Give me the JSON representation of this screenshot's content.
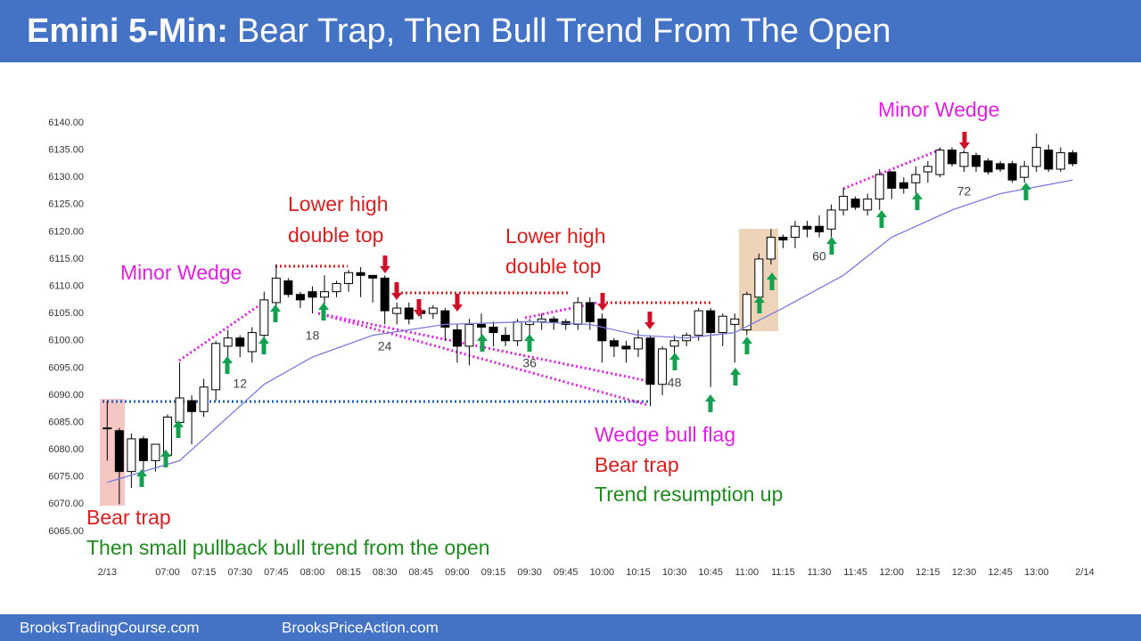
{
  "header": {
    "title_bold": "Emini 5-Min:",
    "title_rest": "Bear Trap, Then Bull Trend From The Open"
  },
  "footer": {
    "left": "BrooksTradingCourse.com",
    "right": "BrooksPriceAction.com"
  },
  "chart_data": {
    "type": "candlestick",
    "x": [
      1,
      2,
      3,
      4,
      5,
      6,
      7,
      8,
      9,
      10,
      11,
      12,
      13,
      14,
      15,
      16,
      17,
      18,
      19,
      20,
      21,
      22,
      23,
      24,
      25,
      26,
      27,
      28,
      29,
      30,
      31,
      32,
      33,
      34,
      35,
      36,
      37,
      38,
      39,
      40,
      41,
      42,
      43,
      44,
      45,
      46,
      47,
      48,
      49,
      50,
      51,
      52,
      53,
      54,
      55,
      56,
      57,
      58,
      59,
      60,
      61,
      62,
      63,
      64,
      65,
      66,
      67,
      68,
      69,
      70,
      71,
      72,
      73,
      74,
      75,
      76,
      77,
      78,
      79,
      80,
      81
    ],
    "open": [
      6084,
      6083.5,
      6076,
      6082,
      6078,
      6079,
      6085,
      6089,
      6087,
      6091,
      6099,
      6100.5,
      6098,
      6101,
      6107,
      6111,
      6108.5,
      6109,
      6108,
      6109,
      6110.5,
      6112.5,
      6112,
      6111.5,
      6105,
      6106,
      6105.5,
      6105,
      6105.5,
      6102,
      6099,
      6103,
      6102.5,
      6101,
      6100,
      6103,
      6103.5,
      6104,
      6103.5,
      6103,
      6107,
      6104,
      6100,
      6099,
      6098.5,
      6100.5,
      6092,
      6099,
      6100,
      6101,
      6105.5,
      6101.5,
      6103,
      6102,
      6108,
      6115,
      6119,
      6119,
      6121,
      6121,
      6120.5,
      6124,
      6126,
      6124,
      6126,
      6131,
      6129,
      6129,
      6131,
      6130.5,
      6135,
      6132,
      6134,
      6133,
      6132.5,
      6132.5,
      6130,
      6132,
      6135,
      6131.5,
      6134.5
    ],
    "high": [
      6089,
      6084,
      6083,
      6082.5,
      6081,
      6086.5,
      6096,
      6090,
      6093,
      6100,
      6102,
      6101,
      6102.5,
      6109,
      6114,
      6111.5,
      6109,
      6110,
      6112,
      6111,
      6113,
      6113.5,
      6112,
      6112,
      6107,
      6107,
      6106,
      6106.5,
      6106,
      6103,
      6104,
      6105,
      6103.5,
      6102.5,
      6104,
      6104,
      6105,
      6104.5,
      6104,
      6108,
      6108,
      6105,
      6100.5,
      6100,
      6102,
      6101,
      6099,
      6101,
      6101.5,
      6106,
      6106,
      6105,
      6105,
      6109,
      6116,
      6120.5,
      6119.5,
      6122,
      6122,
      6123,
      6125,
      6128,
      6126.5,
      6127,
      6131.5,
      6131,
      6130,
      6132,
      6133,
      6135.5,
      6135.5,
      6135,
      6134.5,
      6133.5,
      6133,
      6133,
      6133,
      6138,
      6136,
      6135.5,
      6135
    ],
    "low": [
      6078,
      6070,
      6073,
      6074,
      6076,
      6077,
      6083,
      6081,
      6086,
      6089,
      6097,
      6097,
      6096,
      6099,
      6105,
      6108,
      6106,
      6105,
      6105,
      6108,
      6109,
      6108,
      6107,
      6103,
      6103,
      6103,
      6104,
      6104,
      6100,
      6096,
      6095.5,
      6100,
      6099,
      6099,
      6099,
      6101,
      6102,
      6102,
      6102,
      6102,
      6102,
      6096,
      6097,
      6096,
      6097,
      6088,
      6090,
      6097,
      6099,
      6100,
      6091.5,
      6099,
      6096,
      6101,
      6107,
      6114,
      6117,
      6117,
      6119,
      6119,
      6119,
      6123,
      6124,
      6123,
      6124,
      6126,
      6127,
      6127,
      6129,
      6130,
      6132,
      6131,
      6131,
      6130.5,
      6131,
      6129,
      6129,
      6131,
      6131,
      6131,
      6132
    ],
    "close": [
      6084,
      6076,
      6082,
      6078,
      6081,
      6086,
      6089.5,
      6087,
      6091.5,
      6099.5,
      6100.5,
      6099,
      6101.5,
      6107.5,
      6111.5,
      6108.5,
      6107.5,
      6108,
      6109,
      6110.5,
      6112.5,
      6112,
      6111.5,
      6105.5,
      6106,
      6104,
      6105,
      6106,
      6102.5,
      6099,
      6103,
      6102.5,
      6101.5,
      6100,
      6103.5,
      6103.5,
      6104,
      6103.5,
      6103,
      6107,
      6103.5,
      6100,
      6099,
      6098.5,
      6100.5,
      6092,
      6098.5,
      6100,
      6101,
      6105.5,
      6101.5,
      6104.5,
      6104,
      6108.5,
      6115,
      6119,
      6118.5,
      6121,
      6120.5,
      6120,
      6124,
      6126.5,
      6124.5,
      6126,
      6130.5,
      6128,
      6128,
      6130.5,
      6132,
      6135,
      6132.5,
      6134.5,
      6132,
      6131,
      6131.5,
      6129.5,
      6132,
      6135.5,
      6131.5,
      6134.5,
      6132.5
    ],
    "up_color": "#ffffff",
    "down_color": "#000000",
    "ema": {
      "x": [
        1,
        7,
        11,
        14,
        18,
        23,
        29,
        36,
        41,
        45,
        49,
        53,
        57,
        62,
        66,
        71,
        75,
        81
      ],
      "values": [
        6074,
        6078,
        6086,
        6092,
        6097,
        6101,
        6103,
        6103.5,
        6103,
        6101,
        6100.5,
        6101.5,
        6106,
        6112,
        6119,
        6124,
        6127,
        6129.5
      ],
      "color": "#7b7bdb"
    },
    "xlim": [
      -0.5,
      82.6
    ],
    "ylim": [
      6064.5,
      6141.3
    ],
    "yticks": [
      {
        "value": 6140,
        "label": "6140.00"
      },
      {
        "value": 6135,
        "label": "6135.00"
      },
      {
        "value": 6130,
        "label": "6130.00"
      },
      {
        "value": 6125,
        "label": "6125.00"
      },
      {
        "value": 6120,
        "label": "6120.00"
      },
      {
        "value": 6115,
        "label": "6115.00"
      },
      {
        "value": 6110,
        "label": "6110.00"
      },
      {
        "value": 6105,
        "label": "6105.00"
      },
      {
        "value": 6100,
        "label": "6100.00"
      },
      {
        "value": 6095,
        "label": "6095.00"
      },
      {
        "value": 6090,
        "label": "6090.00"
      },
      {
        "value": 6085,
        "label": "6085.00"
      },
      {
        "value": 6080,
        "label": "6080.00"
      },
      {
        "value": 6075,
        "label": "6075.00"
      },
      {
        "value": 6070,
        "label": "6070.00"
      },
      {
        "value": 6065,
        "label": "6065.00"
      }
    ],
    "xticks": [
      {
        "value": 1,
        "label": "2/13"
      },
      {
        "value": 6,
        "label": "07:00"
      },
      {
        "value": 9,
        "label": "07:15"
      },
      {
        "value": 12,
        "label": "07:30"
      },
      {
        "value": 15,
        "label": "07:45"
      },
      {
        "value": 18,
        "label": "08:00"
      },
      {
        "value": 21,
        "label": "08:15"
      },
      {
        "value": 24,
        "label": "08:30"
      },
      {
        "value": 27,
        "label": "08:45"
      },
      {
        "value": 30,
        "label": "09:00"
      },
      {
        "value": 33,
        "label": "09:15"
      },
      {
        "value": 36,
        "label": "09:30"
      },
      {
        "value": 39,
        "label": "09:45"
      },
      {
        "value": 42,
        "label": "10:00"
      },
      {
        "value": 45,
        "label": "10:15"
      },
      {
        "value": 48,
        "label": "10:30"
      },
      {
        "value": 51,
        "label": "10:45"
      },
      {
        "value": 54,
        "label": "11:00"
      },
      {
        "value": 57,
        "label": "11:15"
      },
      {
        "value": 60,
        "label": "11:30"
      },
      {
        "value": 63,
        "label": "11:45"
      },
      {
        "value": 66,
        "label": "12:00"
      },
      {
        "value": 69,
        "label": "12:15"
      },
      {
        "value": 72,
        "label": "12:30"
      },
      {
        "value": 75,
        "label": "12:45"
      },
      {
        "value": 78,
        "label": "13:00"
      },
      {
        "value": 82,
        "label": "2/14"
      }
    ],
    "bar_labels": [
      12,
      18,
      24,
      36,
      48,
      60,
      72
    ],
    "annotations": [
      "Minor Wedge",
      "Lower high",
      "double top",
      "Lower high",
      "double top",
      "Minor Wedge",
      "Bear trap",
      "Then small pullback bull trend from the open",
      "Wedge bull flag",
      "Bear trap",
      "Trend resumption up"
    ]
  }
}
